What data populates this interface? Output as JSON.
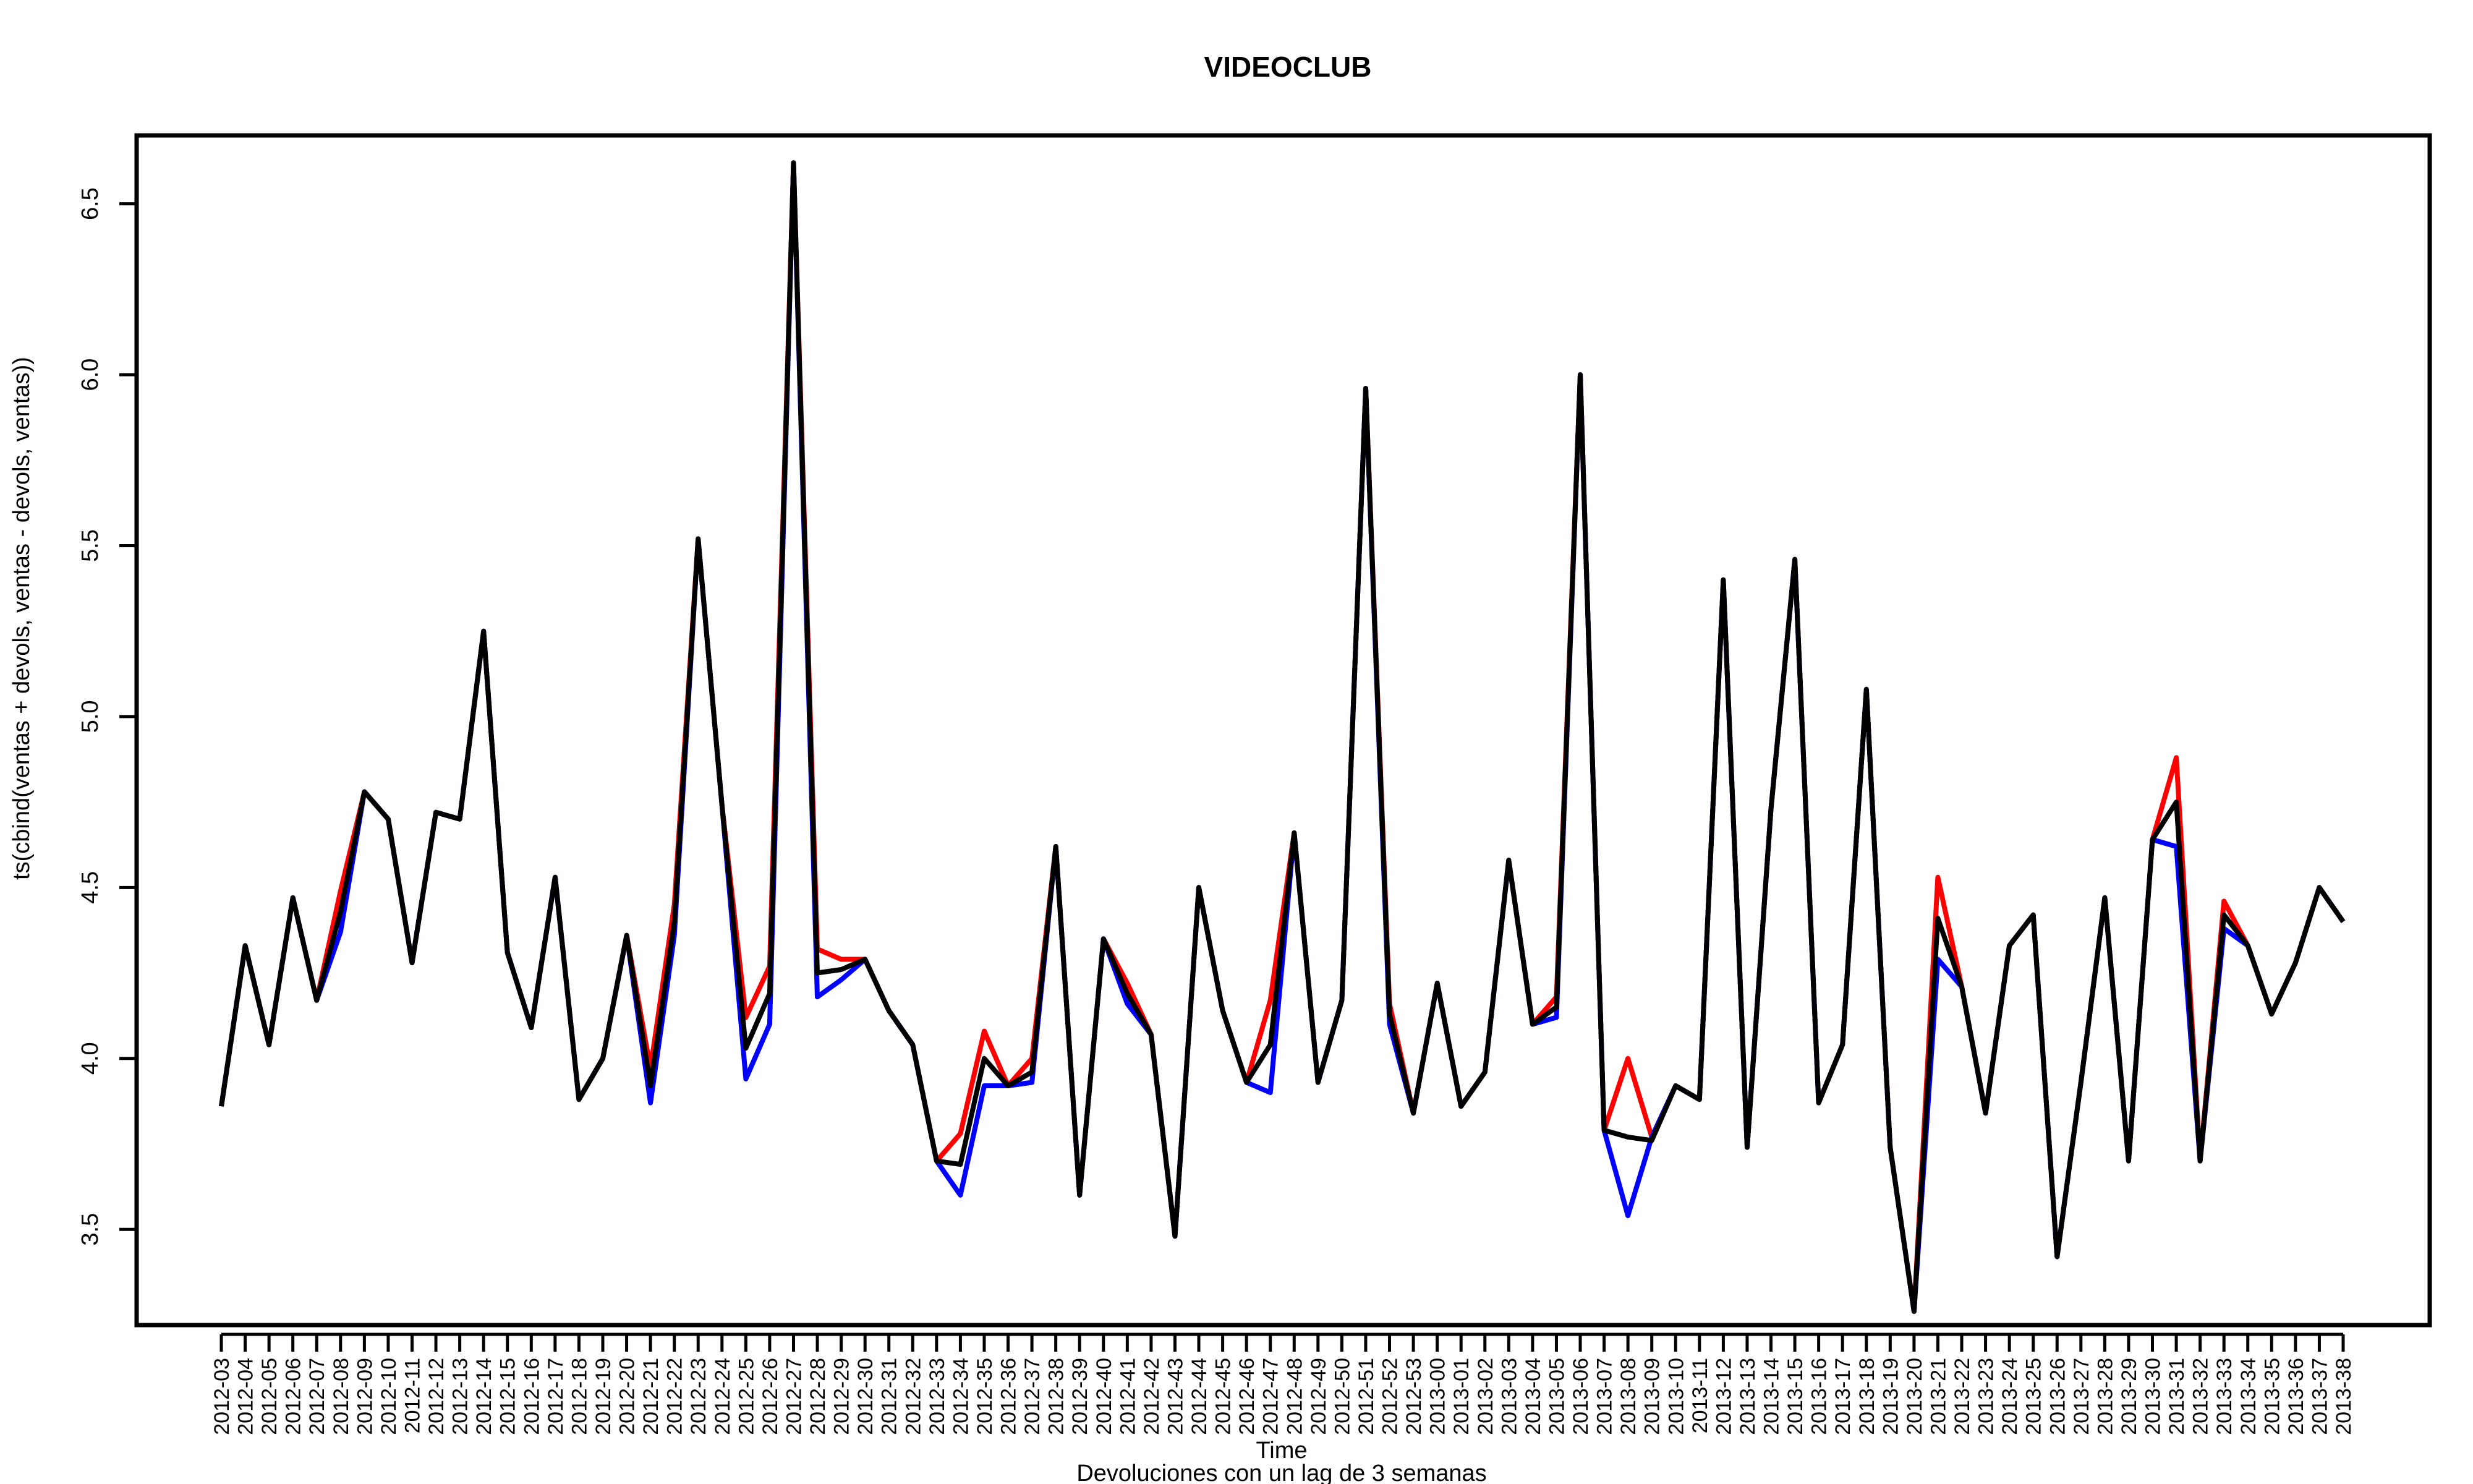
{
  "chart_data": {
    "type": "line",
    "title": "VIDEOCLUB",
    "xlabel": "Time",
    "subtitle": "Devoluciones con un lag de 3 semanas",
    "ylabel": "ts(cbind(ventas + devols, ventas - devols, ventas))",
    "ylim": [
      3.22,
      6.7
    ],
    "yticks": [
      3.5,
      4.0,
      4.5,
      5.0,
      5.5,
      6.0,
      6.5
    ],
    "ytick_labels": [
      "3.5",
      "4.0",
      "4.5",
      "5.0",
      "5.5",
      "6.0",
      "6.5"
    ],
    "grid": false,
    "legend": "none",
    "categories": [
      "2012-03",
      "2012-04",
      "2012-05",
      "2012-06",
      "2012-07",
      "2012-08",
      "2012-09",
      "2012-10",
      "2012-11",
      "2012-12",
      "2012-13",
      "2012-14",
      "2012-15",
      "2012-16",
      "2012-17",
      "2012-18",
      "2012-19",
      "2012-20",
      "2012-21",
      "2012-22",
      "2012-23",
      "2012-24",
      "2012-25",
      "2012-26",
      "2012-27",
      "2012-28",
      "2012-29",
      "2012-30",
      "2012-31",
      "2012-32",
      "2012-33",
      "2012-34",
      "2012-35",
      "2012-36",
      "2012-37",
      "2012-38",
      "2012-39",
      "2012-40",
      "2012-41",
      "2012-42",
      "2012-43",
      "2012-44",
      "2012-45",
      "2012-46",
      "2012-47",
      "2012-48",
      "2012-49",
      "2012-50",
      "2012-51",
      "2012-52",
      "2012-53",
      "2013-00",
      "2013-01",
      "2013-02",
      "2013-03",
      "2013-04",
      "2013-05",
      "2013-06",
      "2013-07",
      "2013-08",
      "2013-09",
      "2013-10",
      "2013-11",
      "2013-12",
      "2013-13",
      "2013-14",
      "2013-15",
      "2013-16",
      "2013-17",
      "2013-18",
      "2013-19",
      "2013-20",
      "2013-21",
      "2013-22",
      "2013-23",
      "2013-24",
      "2013-25",
      "2013-26",
      "2013-27",
      "2013-28",
      "2013-29",
      "2013-30",
      "2013-31",
      "2013-32",
      "2013-33",
      "2013-34",
      "2013-35",
      "2013-36",
      "2013-37",
      "2013-38"
    ],
    "series": [
      {
        "color": "#ff0000",
        "values": [
          3.86,
          4.33,
          4.04,
          4.47,
          4.17,
          4.49,
          4.78,
          4.7,
          4.28,
          4.72,
          4.7,
          5.25,
          4.31,
          4.09,
          4.53,
          3.88,
          4.0,
          4.36,
          3.97,
          4.45,
          5.52,
          4.74,
          4.12,
          4.27,
          6.62,
          4.32,
          4.29,
          4.29,
          4.14,
          4.04,
          3.7,
          3.78,
          4.08,
          3.92,
          4.0,
          4.62,
          3.6,
          4.35,
          4.22,
          4.07,
          3.48,
          4.5,
          4.14,
          3.93,
          4.17,
          4.66,
          3.93,
          4.17,
          5.96,
          4.16,
          3.84,
          4.22,
          3.86,
          3.96,
          4.58,
          4.1,
          4.18,
          6.0,
          3.79,
          4.0,
          3.77,
          3.92,
          3.88,
          5.4,
          3.74,
          4.73,
          5.46,
          3.87,
          4.04,
          5.08,
          3.74,
          3.26,
          4.53,
          4.21,
          3.84,
          4.33,
          4.42,
          3.42,
          3.93,
          4.47,
          3.7,
          4.64,
          4.88,
          3.7,
          4.46,
          4.33,
          4.13,
          4.28,
          4.5,
          4.4
        ]
      },
      {
        "color": "#0000ff",
        "values": [
          3.86,
          4.33,
          4.04,
          4.47,
          4.17,
          4.37,
          4.78,
          4.7,
          4.28,
          4.72,
          4.7,
          5.25,
          4.31,
          4.09,
          4.53,
          3.88,
          4.0,
          4.36,
          3.87,
          4.36,
          5.52,
          4.74,
          3.94,
          4.1,
          6.62,
          4.18,
          4.23,
          4.29,
          4.14,
          4.04,
          3.7,
          3.6,
          3.92,
          3.92,
          3.93,
          4.62,
          3.6,
          4.35,
          4.16,
          4.07,
          3.48,
          4.5,
          4.14,
          3.93,
          3.9,
          4.66,
          3.93,
          4.17,
          5.96,
          4.1,
          3.84,
          4.22,
          3.86,
          3.96,
          4.58,
          4.1,
          4.12,
          6.0,
          3.79,
          3.54,
          3.77,
          3.92,
          3.88,
          5.4,
          3.74,
          4.73,
          5.46,
          3.87,
          4.04,
          5.08,
          3.74,
          3.26,
          4.29,
          4.21,
          3.84,
          4.33,
          4.42,
          3.42,
          3.93,
          4.47,
          3.7,
          4.64,
          4.62,
          3.7,
          4.38,
          4.33,
          4.13,
          4.28,
          4.5,
          4.4
        ]
      },
      {
        "color": "#000000",
        "values": [
          3.86,
          4.33,
          4.04,
          4.47,
          4.17,
          4.43,
          4.78,
          4.7,
          4.28,
          4.72,
          4.7,
          5.25,
          4.31,
          4.09,
          4.53,
          3.88,
          4.0,
          4.36,
          3.92,
          4.4,
          5.52,
          4.74,
          4.03,
          4.19,
          6.62,
          4.25,
          4.26,
          4.29,
          4.14,
          4.04,
          3.7,
          3.69,
          4.0,
          3.92,
          3.96,
          4.62,
          3.6,
          4.35,
          4.19,
          4.07,
          3.48,
          4.5,
          4.14,
          3.93,
          4.04,
          4.66,
          3.93,
          4.17,
          5.96,
          4.13,
          3.84,
          4.22,
          3.86,
          3.96,
          4.58,
          4.1,
          4.15,
          6.0,
          3.79,
          3.77,
          3.76,
          3.92,
          3.88,
          5.4,
          3.74,
          4.73,
          5.46,
          3.87,
          4.04,
          5.08,
          3.74,
          3.26,
          4.41,
          4.21,
          3.84,
          4.33,
          4.42,
          3.42,
          3.93,
          4.47,
          3.7,
          4.64,
          4.75,
          3.7,
          4.42,
          4.33,
          4.13,
          4.28,
          4.5,
          4.4
        ]
      }
    ]
  }
}
